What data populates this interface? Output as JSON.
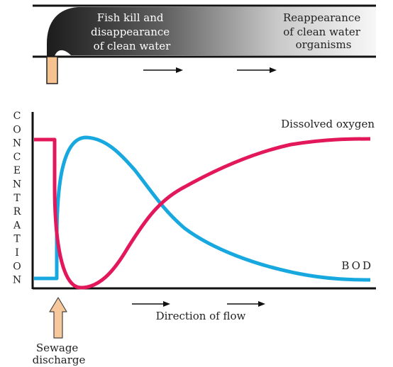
{
  "river_panel": {
    "left_label": [
      "Fish kill and",
      "disappearance",
      "of clean water"
    ],
    "right_label": [
      "Reappearance",
      "of clean water",
      "organisms"
    ]
  },
  "graph": {
    "y_axis_label": "CONCENTRATION",
    "dissolved_oxygen_label": "Dissolved oxygen",
    "bod_label": "BOD",
    "direction_label": "Direction of flow"
  },
  "sewage": {
    "label": [
      "Sewage",
      "discharge"
    ]
  },
  "colors": {
    "dissolved_oxygen": "#e3185a",
    "bod": "#18a8e0",
    "sewage_arrow": "#f7c89b",
    "pipe": "#f5c290",
    "river_dark": "#1f1f1f",
    "river_light": "#f2f2f2"
  }
}
